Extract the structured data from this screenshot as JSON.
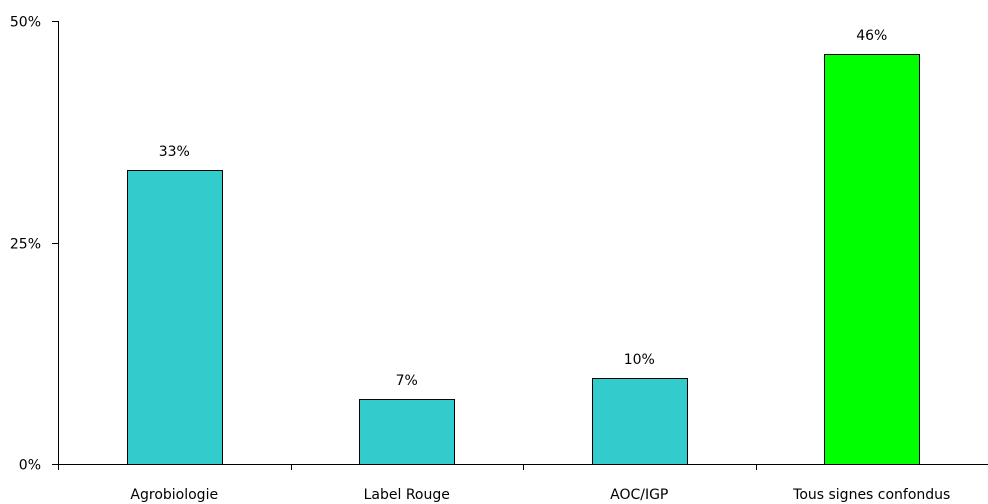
{
  "chart_data": {
    "type": "bar",
    "title": "",
    "xlabel": "",
    "ylabel": "",
    "categories": [
      "Agrobiologie",
      "Label Rouge",
      "AOC/IGP",
      "Tous signes confondus"
    ],
    "values": [
      33.2,
      7.3,
      9.7,
      46.3
    ],
    "data_labels": [
      "33%",
      "7%",
      "10%",
      "46%"
    ],
    "ylim": [
      0,
      50
    ],
    "yticks": [
      0,
      25,
      50
    ],
    "ytick_labels": [
      "0%",
      "25%",
      "50%"
    ],
    "grid": false,
    "legend": "none",
    "colors": [
      "#33cccc",
      "#33cccc",
      "#33cccc",
      "#00ff00"
    ]
  }
}
